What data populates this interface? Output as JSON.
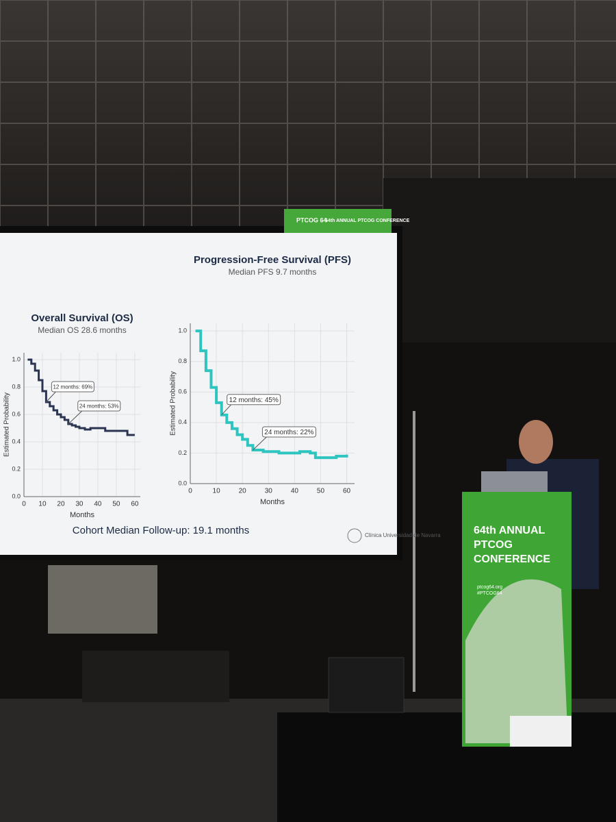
{
  "slide": {
    "header_logo": "PTCOG 64",
    "header_title": "64th ANNUAL PTCOG CONFERENCE",
    "footer": "Cohort Median Follow-up: 19.1 months",
    "institution": "Clínica Universidad de Navarra"
  },
  "podium": {
    "line1": "64th ANNUAL",
    "line2": "PTCOG",
    "line3": "CONFERENCE",
    "web": "ptcog64.org",
    "hashtag": "#PTCOG64"
  },
  "chart_data": [
    {
      "type": "line",
      "title": "Overall Survival (OS)",
      "subtitle": "Median OS 28.6 months",
      "x_label": "Months",
      "y_label": "Estimated Probability",
      "color": "#2b3552",
      "step": true,
      "grid": true,
      "x": [
        2,
        4,
        6,
        8,
        10,
        12,
        14,
        16,
        18,
        20,
        22,
        24,
        26,
        28,
        30,
        33,
        36,
        40,
        44,
        48,
        52,
        56,
        60
      ],
      "values": [
        1.0,
        0.97,
        0.92,
        0.85,
        0.77,
        0.69,
        0.66,
        0.63,
        0.6,
        0.58,
        0.56,
        0.53,
        0.52,
        0.51,
        0.5,
        0.49,
        0.5,
        0.5,
        0.48,
        0.48,
        0.48,
        0.45,
        0.45
      ],
      "xlim": [
        0,
        63
      ],
      "xticks": [
        0,
        10,
        20,
        30,
        40,
        50,
        60
      ],
      "ylim": [
        0,
        1.05
      ],
      "yticks": [
        {
          "value": 0,
          "label": "0.0"
        },
        {
          "value": 0.2,
          "label": "0.2"
        },
        {
          "value": 0.4,
          "label": "0.4"
        },
        {
          "value": 0.6,
          "label": "0.6"
        },
        {
          "value": 0.8,
          "label": "0.8"
        },
        {
          "value": 1,
          "label": "1.0"
        }
      ],
      "annotations": [
        {
          "text": "12 months: 69%",
          "x": 12,
          "y": 0.69
        },
        {
          "text": "24 months: 53%",
          "x": 24,
          "y": 0.53
        }
      ]
    },
    {
      "type": "line",
      "title": "Progression-Free Survival (PFS)",
      "subtitle": "Median PFS 9.7 months",
      "x_label": "Months",
      "y_label": "Estimated Probability",
      "color": "#2ec4c0",
      "step": true,
      "grid": true,
      "x": [
        2,
        4,
        6,
        8,
        10,
        12,
        14,
        16,
        18,
        20,
        22,
        24,
        26,
        28,
        30,
        34,
        38,
        42,
        46,
        48,
        52,
        56,
        60
      ],
      "values": [
        1.0,
        0.87,
        0.74,
        0.63,
        0.53,
        0.45,
        0.4,
        0.36,
        0.32,
        0.29,
        0.25,
        0.22,
        0.22,
        0.21,
        0.21,
        0.2,
        0.2,
        0.21,
        0.2,
        0.17,
        0.17,
        0.18,
        0.19
      ],
      "xlim": [
        0,
        63
      ],
      "xticks": [
        0,
        10,
        20,
        30,
        40,
        50,
        60
      ],
      "ylim": [
        0,
        1.05
      ],
      "yticks": [
        {
          "value": 0,
          "label": "0.0"
        },
        {
          "value": 0.2,
          "label": "0.2"
        },
        {
          "value": 0.4,
          "label": "0.4"
        },
        {
          "value": 0.6,
          "label": "0.6"
        },
        {
          "value": 0.8,
          "label": "0.8"
        },
        {
          "value": 1,
          "label": "1.0"
        }
      ],
      "annotations": [
        {
          "text": "12 months: 45%",
          "x": 12,
          "y": 0.45
        },
        {
          "text": "24 months: 22%",
          "x": 24,
          "y": 0.22
        }
      ]
    }
  ]
}
